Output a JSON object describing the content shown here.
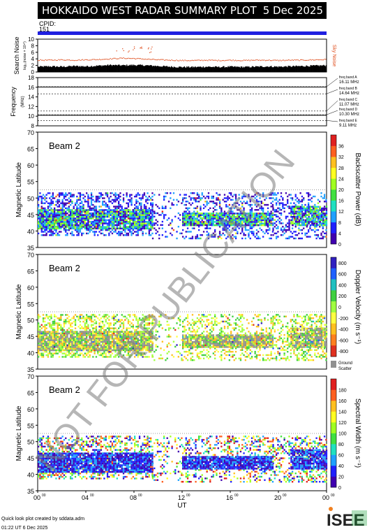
{
  "header": {
    "title": "HOKKAIDO WEST RADAR SUMMARY PLOT",
    "date": "5 Dec 2025"
  },
  "cpid": {
    "label": "CPID:",
    "value": "151"
  },
  "watermark": "NOT FOR PUBLICATION",
  "footer": {
    "line1": "Quick look plot created by sddata.adm",
    "line2": "01:22 UT  6 Dec 2025"
  },
  "logo": "ISEE",
  "colors": {
    "header_bg": "#000000",
    "cpid_bar": "#1f1fe0",
    "noise": "#e05020",
    "ground_scatter": "#909090"
  },
  "chart_data": [
    {
      "type": "bar",
      "name": "noise-panel",
      "ylabel": "Search Noise",
      "ylabel_small": "log₁₀(noise × 10¹⁰)",
      "yticks": [
        "0",
        "2",
        "4",
        "6",
        "8",
        "10"
      ],
      "ylim": [
        0,
        10
      ],
      "side_label": "Sky Noise",
      "x": [
        0,
        1,
        2,
        3,
        4,
        5,
        6,
        7,
        8,
        9,
        10,
        11,
        12,
        13,
        14,
        15,
        16,
        17,
        18,
        19,
        20,
        21,
        22,
        23,
        24
      ],
      "search_noise": [
        1.6,
        1.7,
        1.6,
        1.8,
        1.7,
        1.9,
        2.1,
        2.0,
        2.1,
        2.0,
        1.8,
        1.6,
        1.5,
        1.5,
        1.6,
        1.5,
        1.6,
        1.5,
        1.6,
        1.7,
        1.6,
        1.7,
        1.8,
        1.9,
        2.0
      ],
      "sky_noise": [
        3.6,
        3.6,
        3.7,
        3.6,
        3.7,
        3.8,
        4.0,
        4.2,
        4.1,
        3.9,
        3.7,
        3.6,
        3.5,
        3.5,
        3.6,
        3.5,
        3.6,
        3.5,
        3.6,
        3.6,
        3.5,
        3.6,
        3.6,
        3.7,
        3.8
      ]
    },
    {
      "type": "line",
      "name": "frequency-panel",
      "ylabel": "Frequency",
      "yunit": "(MHz)",
      "yticks": [
        "8",
        "10",
        "12",
        "14",
        "16",
        "18"
      ],
      "ylim": [
        8,
        18
      ],
      "operating_frequency_mhz": 10.2,
      "bands": [
        {
          "label": "freq band A",
          "value": "16.11 MHz",
          "mhz": 16.11
        },
        {
          "label": "freq band B",
          "value": "14.64 MHz",
          "mhz": 14.64
        },
        {
          "label": "freq band C",
          "value": "11.07 MHz",
          "mhz": 11.07
        },
        {
          "label": "freq band D",
          "value": "10.30 MHz",
          "mhz": 10.3
        },
        {
          "label": "freq band E",
          "value": "9.11 MHz",
          "mhz": 9.11
        }
      ]
    },
    {
      "type": "heatmap",
      "name": "power-panel",
      "beam": "Beam  2",
      "ylabel": "Magnetic Latitude",
      "yticks": [
        "35",
        "40",
        "45",
        "50",
        "55",
        "60",
        "65",
        "70"
      ],
      "ylim": [
        35,
        70
      ],
      "colorbar": {
        "label": "Backscatter Power (dB)",
        "ticks": [
          "0",
          "4",
          "8",
          "12",
          "16",
          "20",
          "24",
          "28",
          "32",
          "36"
        ],
        "colors": [
          "#4000b0",
          "#2020ff",
          "#20a0ff",
          "#20e0c0",
          "#40e040",
          "#a0ff20",
          "#ffff20",
          "#ffc020",
          "#ff6020",
          "#e02020"
        ]
      }
    },
    {
      "type": "heatmap",
      "name": "velocity-panel",
      "beam": "Beam  2",
      "ylabel": "Magnetic Latitude",
      "yticks": [
        "35",
        "40",
        "45",
        "50",
        "55",
        "60",
        "65",
        "70"
      ],
      "ylim": [
        35,
        70
      ],
      "colorbar": {
        "label": "Doppler Velocity (m s⁻¹)",
        "ticks": [
          "800",
          "600",
          "400",
          "200",
          "0",
          "-200",
          "-400",
          "-600",
          "-800"
        ],
        "colors": [
          "#3020c0",
          "#2060ff",
          "#20c0c0",
          "#40d040",
          "#a0ff40",
          "#ffff40",
          "#ffc020",
          "#ff8020",
          "#e03020"
        ]
      },
      "ground_label": "Ground",
      "ground_label2": "Scatter"
    },
    {
      "type": "heatmap",
      "name": "width-panel",
      "beam": "Beam  2",
      "ylabel": "Magnetic Latitude",
      "yticks": [
        "35",
        "40",
        "45",
        "50",
        "55",
        "60",
        "65",
        "70"
      ],
      "ylim": [
        35,
        70
      ],
      "xlabel": "UT",
      "xticks": [
        "00",
        "04",
        "08",
        "12",
        "16",
        "20",
        "00"
      ],
      "xtick_sup": "00",
      "colorbar": {
        "label": "Spectral Width (m s⁻¹)",
        "ticks": [
          "0",
          "20",
          "40",
          "60",
          "80",
          "100",
          "120",
          "140",
          "160",
          "180"
        ],
        "colors": [
          "#4000b0",
          "#2020ff",
          "#20a0ff",
          "#20e0c0",
          "#40e040",
          "#a0ff20",
          "#ffff20",
          "#ffc020",
          "#ff6020",
          "#e02020"
        ]
      }
    }
  ]
}
